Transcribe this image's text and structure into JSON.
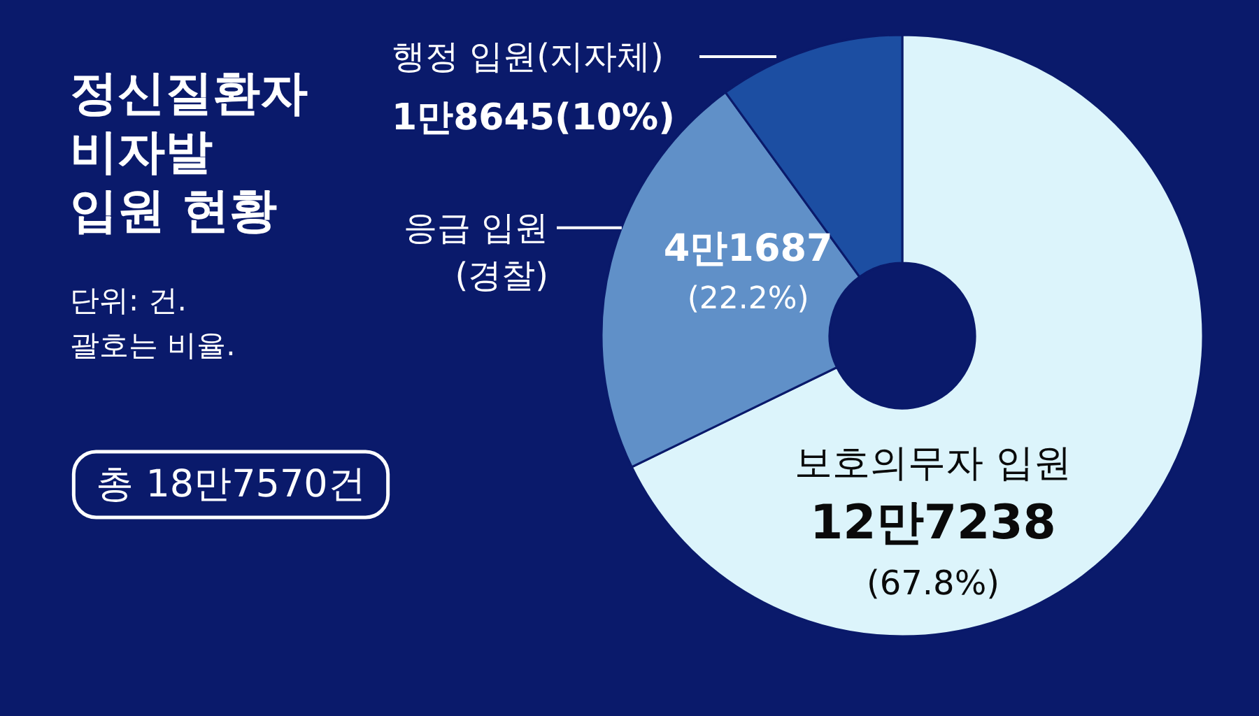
{
  "chart_data": {
    "type": "donut",
    "title": "정신질환자\n비자발\n입원 현황",
    "categories": [
      "보호의무자 입원",
      "응급 입원\n(경찰)",
      "행정 입원(지자체)"
    ],
    "values": [
      67.8,
      22.2,
      10
    ],
    "colors": [
      "#dcf4fb",
      "#6090c8",
      "#1c4ea2"
    ],
    "value_labels": [
      "(67.8%)",
      "(22.2%)",
      "(10%)"
    ],
    "annotations": [
      "단위: 건.\n괄호는 비율.",
      "총 18만7570건",
      "12만7238",
      "4만1687",
      "1만8645"
    ]
  }
}
